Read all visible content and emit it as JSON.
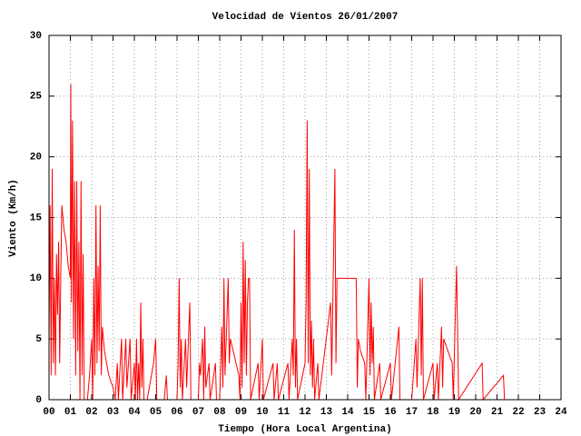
{
  "chart_data": {
    "type": "line",
    "title": "Velocidad de Vientos 26/01/2007",
    "x_label": "Tiempo (Hora Local Argentina)",
    "y_label": "Viento (Km/h)",
    "xlim": [
      0,
      24
    ],
    "ylim": [
      0,
      30
    ],
    "xticks": [
      {
        "value": 0,
        "label": "00"
      },
      {
        "value": 1,
        "label": "01"
      },
      {
        "value": 2,
        "label": "02"
      },
      {
        "value": 3,
        "label": "03"
      },
      {
        "value": 4,
        "label": "04"
      },
      {
        "value": 5,
        "label": "05"
      },
      {
        "value": 6,
        "label": "06"
      },
      {
        "value": 7,
        "label": "07"
      },
      {
        "value": 8,
        "label": "08"
      },
      {
        "value": 9,
        "label": "09"
      },
      10,
      11,
      12,
      13,
      14,
      15,
      16,
      17,
      18,
      19,
      20,
      21,
      22,
      23,
      24
    ],
    "yticks": [
      0,
      5,
      10,
      15,
      20,
      25,
      30
    ],
    "grid": true,
    "x": [
      0,
      0.05,
      0.1,
      0.15,
      0.2,
      0.25,
      0.3,
      0.35,
      0.4,
      0.45,
      0.5,
      0.55,
      0.6,
      0.7,
      0.8,
      0.9,
      1.0,
      1.02,
      1.05,
      1.1,
      1.15,
      1.2,
      1.25,
      1.3,
      1.35,
      1.4,
      1.45,
      1.5,
      1.55,
      1.6,
      1.65,
      1.8,
      1.9,
      2.0,
      2.05,
      2.1,
      2.15,
      2.2,
      2.25,
      2.3,
      2.35,
      2.4,
      2.45,
      2.5,
      2.6,
      2.8,
      3.0,
      3.1,
      3.2,
      3.25,
      3.4,
      3.45,
      3.6,
      3.65,
      3.8,
      3.85,
      4.0,
      4.05,
      4.1,
      4.15,
      4.2,
      4.25,
      4.3,
      4.35,
      4.4,
      4.45,
      4.6,
      4.9,
      5.0,
      5.05,
      5.4,
      5.5,
      5.55,
      6.0,
      6.05,
      6.1,
      6.15,
      6.2,
      6.25,
      6.4,
      6.45,
      6.6,
      6.65,
      7.0,
      7.05,
      7.1,
      7.2,
      7.25,
      7.3,
      7.35,
      7.5,
      7.55,
      7.8,
      7.85,
      8.0,
      8.1,
      8.15,
      8.2,
      8.25,
      8.4,
      8.45,
      8.5,
      8.9,
      8.95,
      9.0,
      9.05,
      9.1,
      9.15,
      9.2,
      9.25,
      9.3,
      9.35,
      9.4,
      9.45,
      9.8,
      9.85,
      10.0,
      10.05,
      10.5,
      10.55,
      10.7,
      10.75,
      11.2,
      11.25,
      11.4,
      11.45,
      11.5,
      11.55,
      11.6,
      11.65,
      12.0,
      12.05,
      12.1,
      12.15,
      12.2,
      12.25,
      12.3,
      12.35,
      12.4,
      12.45,
      12.6,
      12.65,
      13.2,
      13.25,
      13.4,
      13.45,
      13.5,
      13.6,
      14.4,
      14.45,
      14.5,
      14.6,
      14.8,
      14.85,
      15.0,
      15.05,
      15.1,
      15.15,
      15.2,
      15.25,
      15.5,
      15.55,
      16.0,
      16.05,
      16.4,
      16.45,
      17.0,
      17.2,
      17.25,
      17.4,
      17.45,
      17.5,
      17.55,
      18.0,
      18.05,
      18.2,
      18.25,
      18.4,
      18.45,
      18.5,
      18.9,
      18.95,
      19.1,
      19.15,
      19.2,
      20.3,
      20.35,
      21.3,
      21.35
    ],
    "series": [
      {
        "color": "#ff0000",
        "values": [
          5,
          16,
          2,
          19,
          3,
          10,
          2,
          12,
          7,
          13,
          3,
          10,
          16,
          14,
          13,
          11,
          10,
          26,
          8,
          23,
          5,
          18,
          2,
          18,
          4,
          13,
          0,
          18,
          2,
          12,
          0,
          0,
          2,
          5,
          0,
          10,
          2,
          16,
          3,
          11,
          4,
          16,
          2,
          6,
          4,
          2,
          1,
          0,
          3,
          0,
          5,
          0,
          5,
          1,
          5,
          0,
          3,
          0,
          5,
          0,
          3,
          0,
          8,
          1,
          5,
          0,
          0,
          3,
          5,
          0,
          0,
          2,
          0,
          0,
          3,
          10,
          1,
          5,
          0,
          5,
          1,
          8,
          0,
          0,
          3,
          2,
          5,
          0,
          6,
          1,
          3,
          0,
          3,
          0,
          0,
          6,
          1,
          10,
          2,
          10,
          3,
          5,
          2,
          0,
          8,
          1,
          13,
          3,
          11.5,
          2,
          8,
          10,
          10,
          0,
          3,
          0,
          5,
          0,
          3,
          0,
          3,
          0,
          3,
          0,
          5,
          2,
          14,
          1,
          5,
          0,
          3,
          8,
          23,
          3,
          19,
          2,
          6.5,
          1,
          5,
          0,
          3,
          0,
          8,
          2,
          19,
          3,
          10,
          10,
          10,
          1,
          5,
          4,
          3,
          0,
          10,
          2,
          8,
          3,
          6,
          0,
          3,
          0,
          3,
          0,
          6,
          0,
          0,
          5,
          1,
          10,
          2,
          10,
          0,
          3,
          0,
          3,
          0,
          6,
          1,
          5,
          3,
          0,
          11,
          6,
          0,
          3,
          0,
          2,
          0
        ]
      }
    ]
  }
}
